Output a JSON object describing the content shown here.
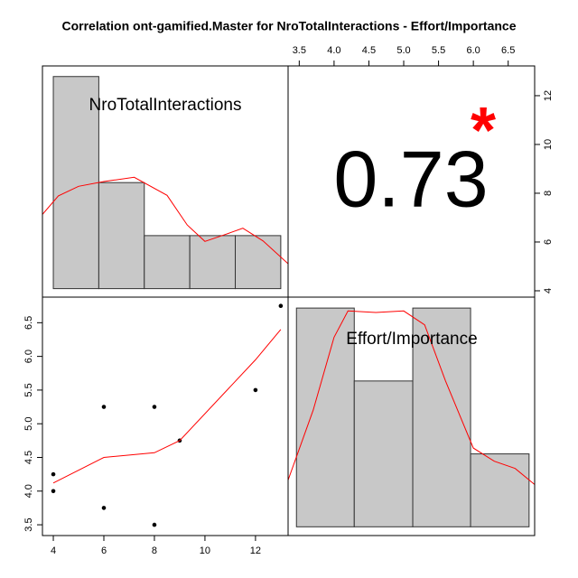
{
  "chart_data": {
    "type": "correlation-matrix",
    "title": "Correlation ont-gamified.Master for NroTotalInteractions - Effort/Importance",
    "variables": [
      "NroTotalInteractions",
      "Effort/Importance"
    ],
    "histograms": [
      {
        "bins": [
          4,
          5.8,
          7.6,
          9.4,
          11.2,
          13
        ],
        "counts": [
          4,
          2,
          1,
          1,
          1
        ],
        "color": "#c8c8c8",
        "density": {
          "color": "#ff0000",
          "x": [
            3.57,
            4.2,
            5,
            6,
            7.2,
            8.5,
            9.3,
            10,
            10.8,
            11.5,
            12.3,
            13.29
          ],
          "y": [
            1.4,
            1.75,
            1.93,
            2.02,
            2.1,
            1.76,
            1.2,
            0.89,
            1.02,
            1.14,
            0.9,
            0.47
          ]
        }
      },
      {
        "bins": [
          3.46,
          4.29,
          5.13,
          5.96,
          6.8
        ],
        "counts": [
          3,
          2,
          3,
          1
        ],
        "color": "#c8c8c8",
        "density": {
          "color": "#ff0000",
          "x": [
            3.34,
            3.7,
            4.0,
            4.2,
            4.6,
            5.0,
            5.3,
            5.6,
            6.0,
            6.3,
            6.6,
            6.88
          ],
          "y": [
            0.64,
            1.6,
            2.6,
            2.96,
            2.94,
            2.96,
            2.77,
            2.0,
            1.08,
            0.9,
            0.8,
            0.58
          ]
        }
      }
    ],
    "scatter": {
      "x": [
        4,
        4,
        6,
        6,
        8,
        8,
        9,
        12,
        13
      ],
      "y": [
        4.25,
        4.0,
        5.25,
        3.75,
        5.25,
        3.5,
        4.75,
        5.5,
        6.75
      ],
      "smooth": {
        "color": "#ff0000",
        "x": [
          4,
          6,
          8,
          9,
          12,
          13
        ],
        "y": [
          4.12,
          4.5,
          4.57,
          4.75,
          5.95,
          6.4
        ]
      },
      "xlim": [
        3.57,
        13.29
      ],
      "ylim": [
        3.34,
        6.88
      ],
      "xticks": [
        4,
        6,
        8,
        10,
        12
      ],
      "yticks": [
        3.5,
        {
          "value": 4,
          "label": "4.0"
        },
        4.5,
        {
          "value": 5,
          "label": "5.0"
        },
        5.5,
        {
          "value": 6,
          "label": "6.0"
        },
        6.5
      ]
    },
    "upper_ylim": [
      3.74,
      13.22
    ],
    "correlation": {
      "value": 0.73,
      "stars": "*",
      "stars_color": "#ff0000"
    }
  }
}
